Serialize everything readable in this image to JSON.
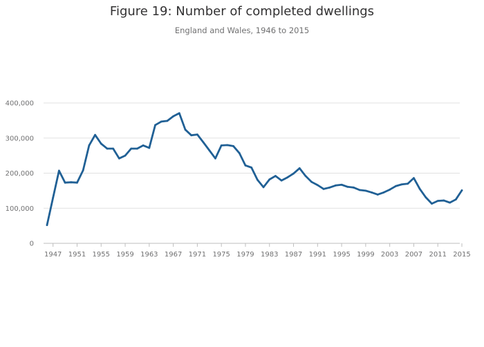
{
  "header": {
    "title": "Figure 19: Number of completed dwellings",
    "subtitle": "England and Wales, 1946 to 2015"
  },
  "colors": {
    "line": "#206095",
    "grid": "#e1e1e1",
    "axis": "#bebebe",
    "text": "#707071"
  },
  "chart_data": {
    "type": "line",
    "title": "Figure 19: Number of completed dwellings",
    "subtitle": "England and Wales, 1946 to 2015",
    "xlabel": "",
    "ylabel": "",
    "xlim": [
      1946,
      2015
    ],
    "ylim": [
      0,
      400000
    ],
    "grid": true,
    "legend": "none",
    "y_ticks": [
      0,
      100000,
      200000,
      300000,
      400000
    ],
    "y_tick_labels": [
      "0",
      "100,000",
      "200,000",
      "300,000",
      "400,000"
    ],
    "x_ticks": [
      1947,
      1951,
      1955,
      1959,
      1963,
      1967,
      1971,
      1975,
      1979,
      1983,
      1987,
      1991,
      1995,
      1999,
      2003,
      2007,
      2011,
      2015
    ],
    "x_tick_labels": [
      "1947",
      "1951",
      "1955",
      "1959",
      "1963",
      "1967",
      "1971",
      "1975",
      "1979",
      "1983",
      "1987",
      "1991",
      "1995",
      "1999",
      "2003",
      "2007",
      "2011",
      "2015"
    ],
    "series": [
      {
        "x": [
          1946,
          1947,
          1948,
          1949,
          1950,
          1951,
          1952,
          1953,
          1954,
          1955,
          1956,
          1957,
          1958,
          1959,
          1960,
          1961,
          1962,
          1963,
          1964,
          1965,
          1966,
          1967,
          1968,
          1969,
          1970,
          1971,
          1972,
          1973,
          1974,
          1975,
          1976,
          1977,
          1978,
          1979,
          1980,
          1981,
          1982,
          1983,
          1984,
          1985,
          1986,
          1987,
          1988,
          1989,
          1990,
          1991,
          1992,
          1993,
          1994,
          1995,
          1996,
          1997,
          1998,
          1999,
          2000,
          2001,
          2002,
          2003,
          2004,
          2005,
          2006,
          2007,
          2008,
          2009,
          2010,
          2011,
          2012,
          2013,
          2014,
          2015
        ],
        "values": [
          52000,
          130000,
          207000,
          173000,
          174000,
          173000,
          208000,
          279000,
          309000,
          284000,
          270000,
          270000,
          242000,
          250000,
          270000,
          270000,
          279000,
          272000,
          337000,
          347000,
          349000,
          362000,
          371000,
          324000,
          308000,
          310000,
          288000,
          265000,
          242000,
          279000,
          280000,
          277000,
          257000,
          222000,
          216000,
          181000,
          160000,
          182000,
          192000,
          179000,
          188000,
          199000,
          214000,
          192000,
          175000,
          166000,
          155000,
          159000,
          165000,
          167000,
          161000,
          159000,
          152000,
          150000,
          145000,
          139000,
          145000,
          153000,
          163000,
          168000,
          170000,
          186000,
          155000,
          131000,
          113000,
          121000,
          122000,
          116000,
          125000,
          151000
        ]
      }
    ]
  }
}
